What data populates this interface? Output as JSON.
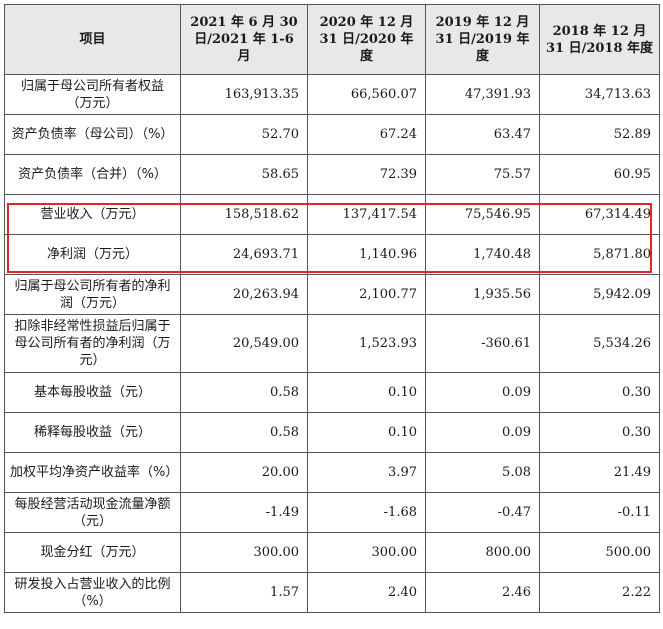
{
  "header": {
    "item": "项目",
    "col1": "2021 年 6 月 30 日/2021 年 1-6 月",
    "col2": "2020 年 12 月 31 日/2020 年度",
    "col3": "2019 年 12 月 31 日/2019 年度",
    "col4": "2018 年 12 月 31 日/2018 年度"
  },
  "rows": [
    {
      "label": "归属于母公司所有者权益（万元）",
      "v1": "163,913.35",
      "v2": "66,560.07",
      "v3": "47,391.93",
      "v4": "34,713.63"
    },
    {
      "label": "资产负债率（母公司）（%）",
      "v1": "52.70",
      "v2": "67.24",
      "v3": "63.47",
      "v4": "52.89"
    },
    {
      "label": "资产负债率（合并）（%）",
      "v1": "58.65",
      "v2": "72.39",
      "v3": "75.57",
      "v4": "60.95"
    },
    {
      "label": "营业收入（万元）",
      "v1": "158,518.62",
      "v2": "137,417.54",
      "v3": "75,546.95",
      "v4": "67,314.49"
    },
    {
      "label": "净利润（万元）",
      "v1": "24,693.71",
      "v2": "1,140.96",
      "v3": "1,740.48",
      "v4": "5,871.80"
    },
    {
      "label": "归属于母公司所有者的净利润（万元）",
      "v1": "20,263.94",
      "v2": "2,100.77",
      "v3": "1,935.56",
      "v4": "5,942.09"
    },
    {
      "label": "扣除非经常性损益后归属于母公司所有者的净利润（万元）",
      "v1": "20,549.00",
      "v2": "1,523.93",
      "v3": "-360.61",
      "v4": "5,534.26"
    },
    {
      "label": "基本每股收益（元）",
      "v1": "0.58",
      "v2": "0.10",
      "v3": "0.09",
      "v4": "0.30"
    },
    {
      "label": "稀释每股收益（元）",
      "v1": "0.58",
      "v2": "0.10",
      "v3": "0.09",
      "v4": "0.30"
    },
    {
      "label": "加权平均净资产收益率（%）",
      "v1": "20.00",
      "v2": "3.97",
      "v3": "5.08",
      "v4": "21.49"
    },
    {
      "label": "每股经营活动现金流量净额（元）",
      "v1": "-1.49",
      "v2": "-1.68",
      "v3": "-0.47",
      "v4": "-0.11"
    },
    {
      "label": "现金分红（万元）",
      "v1": "300.00",
      "v2": "300.00",
      "v3": "800.00",
      "v4": "500.00"
    },
    {
      "label": "研发投入占营业收入的比例（%）",
      "v1": "1.57",
      "v2": "2.40",
      "v3": "2.46",
      "v4": "2.22"
    }
  ]
}
